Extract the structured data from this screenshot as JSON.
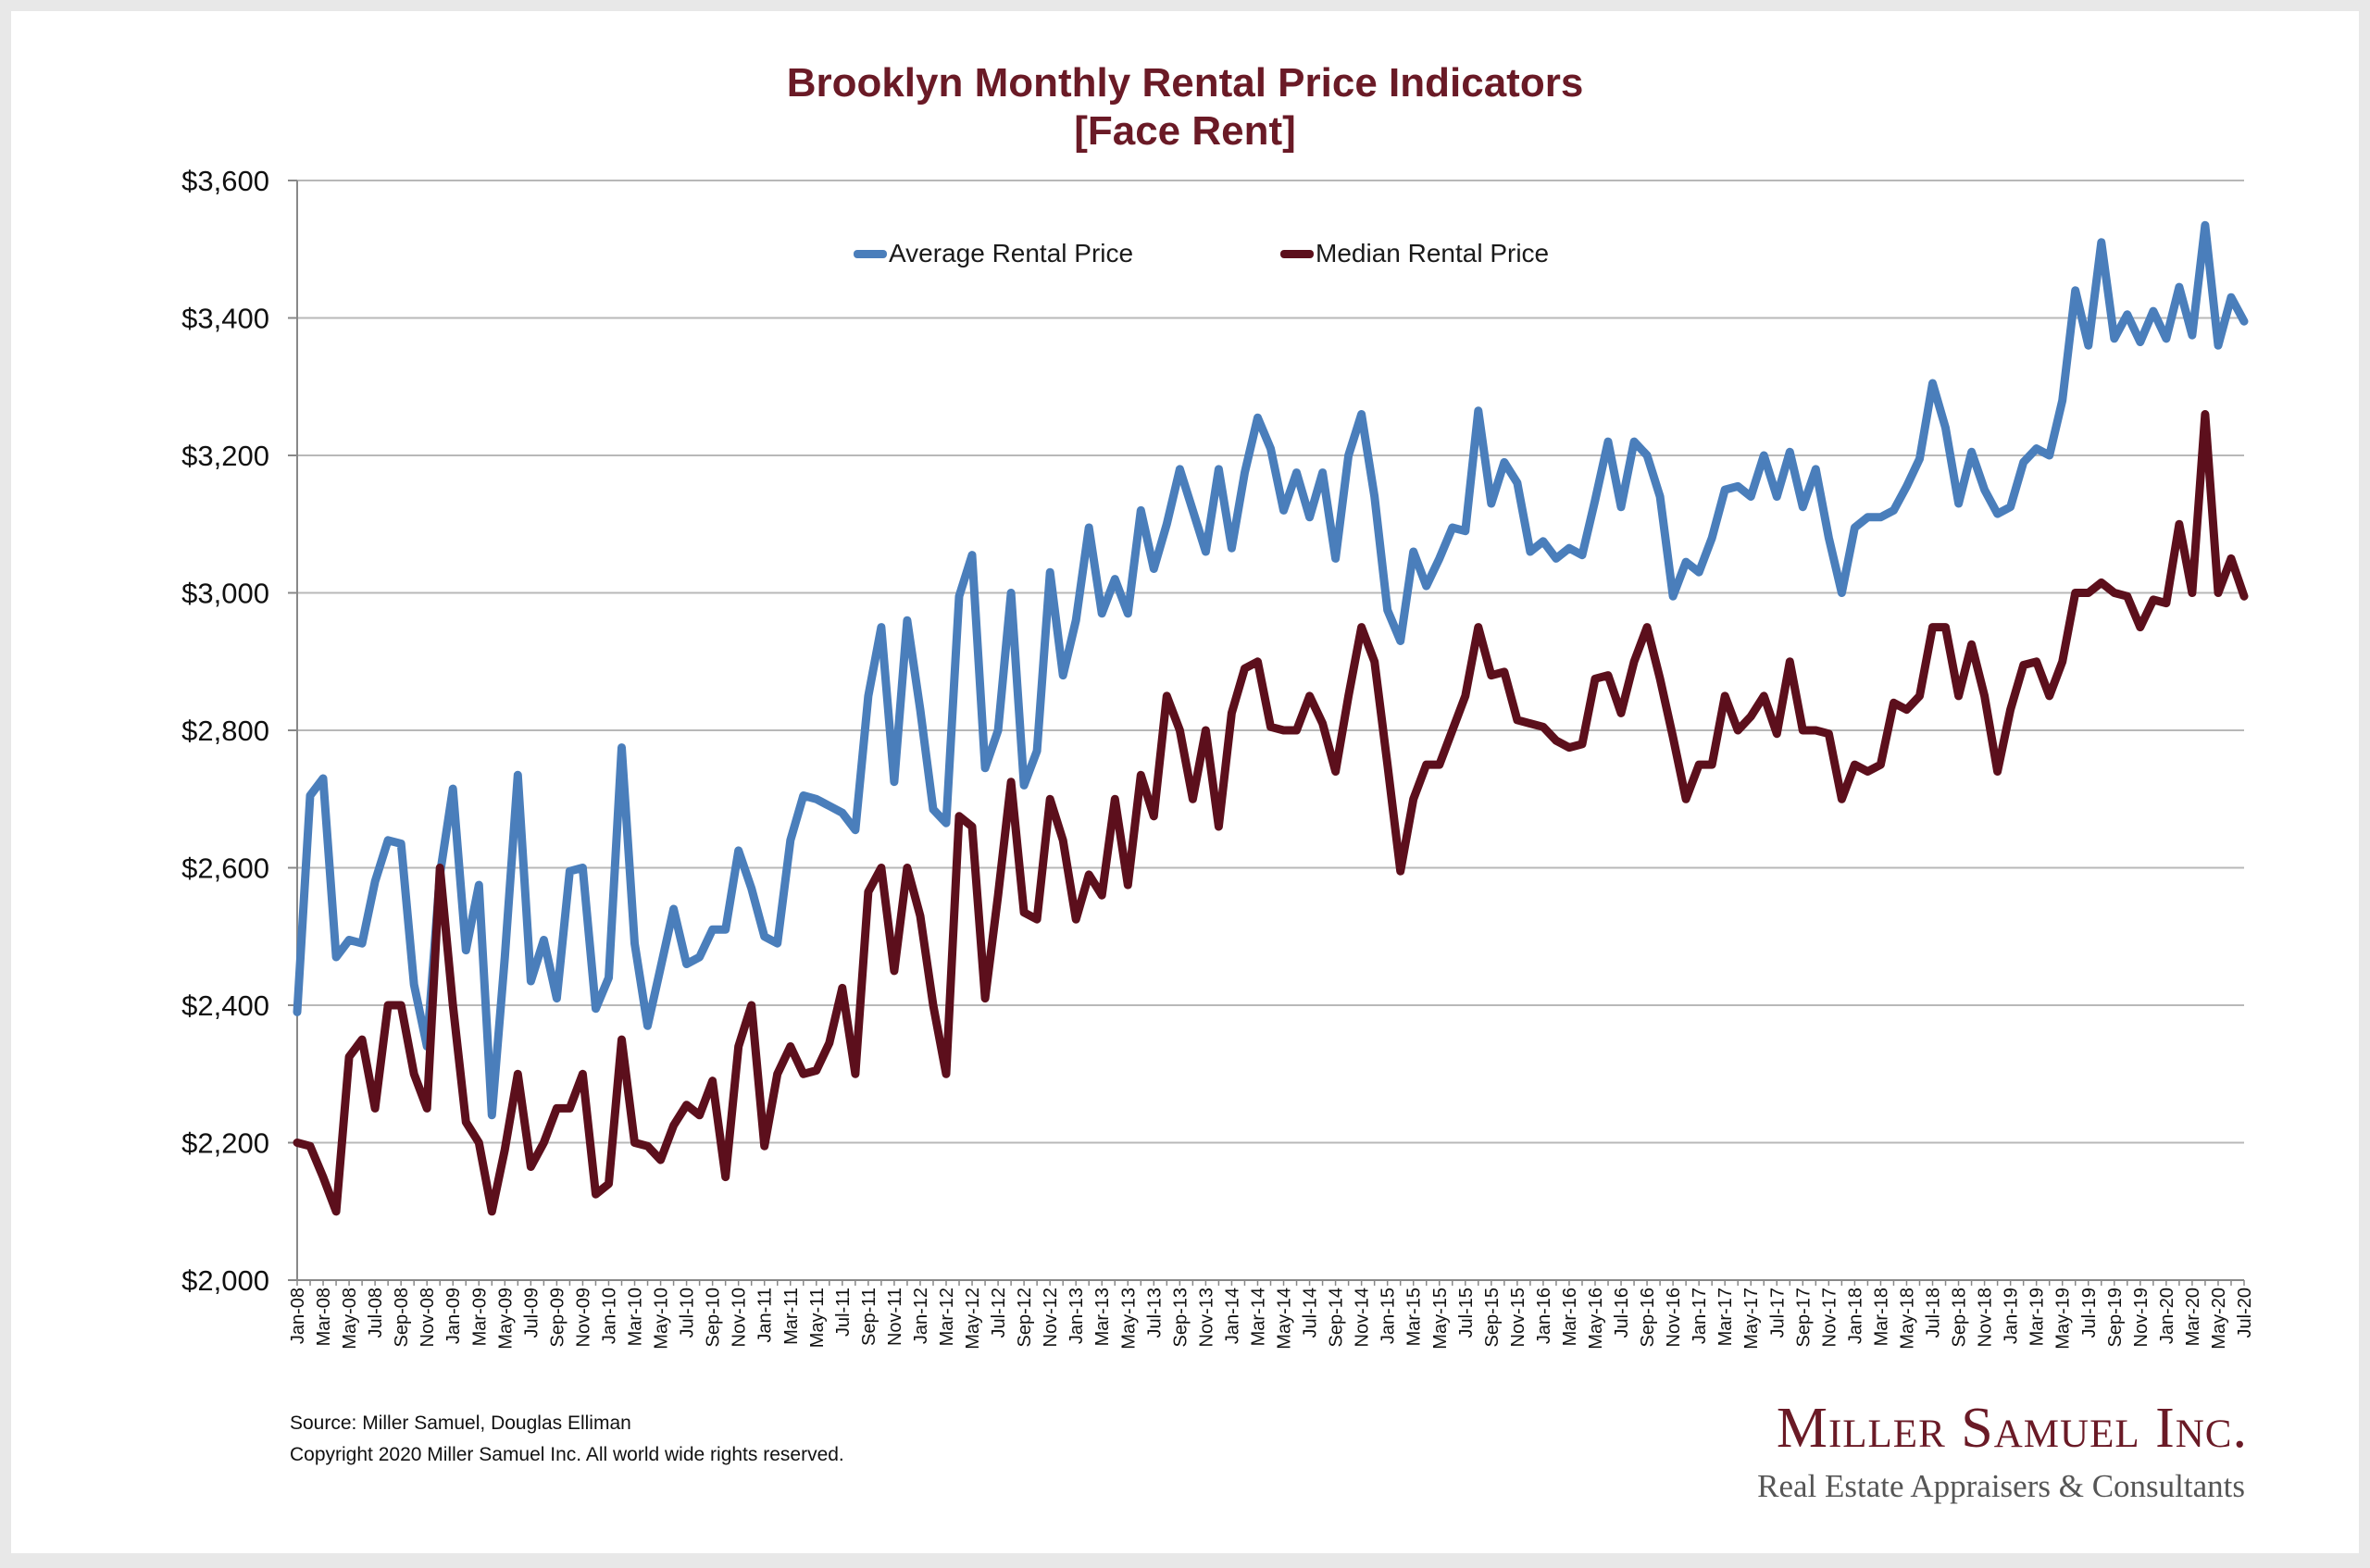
{
  "header": {
    "title_line1": "Brooklyn Monthly Rental Price Indicators",
    "title_line2": "[Face Rent]"
  },
  "legend": {
    "average_label": "Average Rental Price",
    "median_label": "Median Rental Price"
  },
  "footer": {
    "source": "Source: Miller Samuel, Douglas Elliman",
    "copyright": "Copyright 2020 Miller Samuel Inc.  All world wide rights reserved."
  },
  "logo": {
    "name": "Miller Samuel Inc.",
    "tagline": "Real Estate Appraisers & Consultants"
  },
  "colors": {
    "average": "#4a7ebb",
    "median": "#5c0f1c",
    "title": "#6a1a26",
    "grid": "#b8b8b8"
  },
  "chart_data": {
    "type": "line",
    "title": "Brooklyn Monthly Rental Price Indicators [Face Rent]",
    "xlabel": "",
    "ylabel": "",
    "ylim": [
      2000,
      3600
    ],
    "y_ticks": [
      2000,
      2200,
      2400,
      2600,
      2800,
      3000,
      3200,
      3400,
      3600
    ],
    "y_tick_labels": [
      "$2,000",
      "$2,200",
      "$2,400",
      "$2,600",
      "$2,800",
      "$3,000",
      "$3,200",
      "$3,400",
      "$3,600"
    ],
    "grid": true,
    "legend_position": "top-center",
    "start_month": "2008-01",
    "x_tick_labels": [
      "Jan-08",
      "Mar-08",
      "May-08",
      "Jul-08",
      "Sep-08",
      "Nov-08",
      "Jan-09",
      "Mar-09",
      "May-09",
      "Jul-09",
      "Sep-09",
      "Nov-09",
      "Jan-10",
      "Mar-10",
      "May-10",
      "Jul-10",
      "Sep-10",
      "Nov-10",
      "Jan-11",
      "Mar-11",
      "May-11",
      "Jul-11",
      "Sep-11",
      "Nov-11",
      "Jan-12",
      "Mar-12",
      "May-12",
      "Jul-12",
      "Sep-12",
      "Nov-12",
      "Jan-13",
      "Mar-13",
      "May-13",
      "Jul-13",
      "Sep-13",
      "Nov-13",
      "Jan-14",
      "Mar-14",
      "May-14",
      "Jul-14",
      "Sep-14",
      "Nov-14",
      "Jan-15",
      "Mar-15",
      "May-15",
      "Jul-15",
      "Sep-15",
      "Nov-15",
      "Jan-16",
      "Mar-16",
      "May-16",
      "Jul-16",
      "Sep-16",
      "Nov-16",
      "Jan-17",
      "Mar-17",
      "May-17",
      "Jul-17",
      "Sep-17",
      "Nov-17",
      "Jan-18",
      "Mar-18",
      "May-18",
      "Jul-18",
      "Sep-18",
      "Nov-18",
      "Jan-19",
      "Mar-19",
      "May-19",
      "Jul-19",
      "Sep-19",
      "Nov-19",
      "Jan-20",
      "Mar-20",
      "May-20",
      "Jul-20"
    ],
    "series": [
      {
        "name": "Average Rental Price",
        "values": [
          2390,
          2705,
          2730,
          2470,
          2495,
          2490,
          2580,
          2640,
          2635,
          2430,
          2340,
          2590,
          2715,
          2480,
          2575,
          2240,
          2470,
          2735,
          2435,
          2495,
          2410,
          2595,
          2600,
          2395,
          2440,
          2775,
          2490,
          2370,
          2455,
          2540,
          2460,
          2470,
          2510,
          2510,
          2625,
          2570,
          2500,
          2490,
          2640,
          2705,
          2700,
          2690,
          2680,
          2655,
          2850,
          2950,
          2725,
          2960,
          2830,
          2685,
          2665,
          2995,
          3055,
          2745,
          2800,
          3000,
          2720,
          2770,
          3030,
          2880,
          2960,
          3095,
          2970,
          3020,
          2970,
          3120,
          3035,
          3100,
          3180,
          3120,
          3060,
          3180,
          3065,
          3175,
          3255,
          3210,
          3120,
          3175,
          3110,
          3175,
          3050,
          3200,
          3260,
          3140,
          2975,
          2930,
          3060,
          3010,
          3050,
          3095,
          3090,
          3265,
          3130,
          3190,
          3160,
          3060,
          3075,
          3050,
          3065,
          3055,
          3135,
          3220,
          3125,
          3220,
          3200,
          3140,
          2995,
          3045,
          3030,
          3080,
          3150,
          3155,
          3140,
          3200,
          3140,
          3205,
          3125,
          3180,
          3080,
          3000,
          3095,
          3110,
          3110,
          3120,
          3155,
          3195,
          3305,
          3240,
          3130,
          3205,
          3150,
          3115,
          3125,
          3190,
          3210,
          3200,
          3280,
          3440,
          3360,
          3510,
          3370,
          3405,
          3365,
          3410,
          3370,
          3445,
          3375,
          3535,
          3360,
          3430,
          3395
        ]
      },
      {
        "name": "Median Rental Price",
        "values": [
          2200,
          2195,
          2150,
          2100,
          2325,
          2350,
          2250,
          2400,
          2400,
          2300,
          2250,
          2600,
          2400,
          2230,
          2200,
          2100,
          2190,
          2300,
          2165,
          2200,
          2250,
          2250,
          2300,
          2125,
          2140,
          2350,
          2200,
          2195,
          2175,
          2225,
          2255,
          2240,
          2290,
          2150,
          2340,
          2400,
          2195,
          2300,
          2340,
          2300,
          2305,
          2345,
          2425,
          2300,
          2565,
          2600,
          2450,
          2600,
          2530,
          2400,
          2300,
          2675,
          2660,
          2410,
          2560,
          2725,
          2535,
          2525,
          2700,
          2640,
          2525,
          2590,
          2560,
          2700,
          2575,
          2735,
          2675,
          2850,
          2800,
          2700,
          2800,
          2660,
          2825,
          2890,
          2900,
          2805,
          2800,
          2800,
          2850,
          2810,
          2740,
          2850,
          2950,
          2900,
          2750,
          2595,
          2700,
          2750,
          2750,
          2800,
          2850,
          2950,
          2880,
          2885,
          2815,
          2810,
          2805,
          2785,
          2775,
          2780,
          2875,
          2880,
          2825,
          2900,
          2950,
          2875,
          2790,
          2700,
          2750,
          2750,
          2850,
          2800,
          2820,
          2850,
          2795,
          2900,
          2800,
          2800,
          2795,
          2700,
          2750,
          2740,
          2750,
          2840,
          2830,
          2850,
          2950,
          2950,
          2850,
          2925,
          2850,
          2740,
          2830,
          2895,
          2900,
          2850,
          2900,
          3000,
          3000,
          3015,
          3000,
          2995,
          2950,
          2990,
          2985,
          3100,
          3000,
          3260,
          3000,
          3050,
          2995
        ]
      }
    ]
  }
}
